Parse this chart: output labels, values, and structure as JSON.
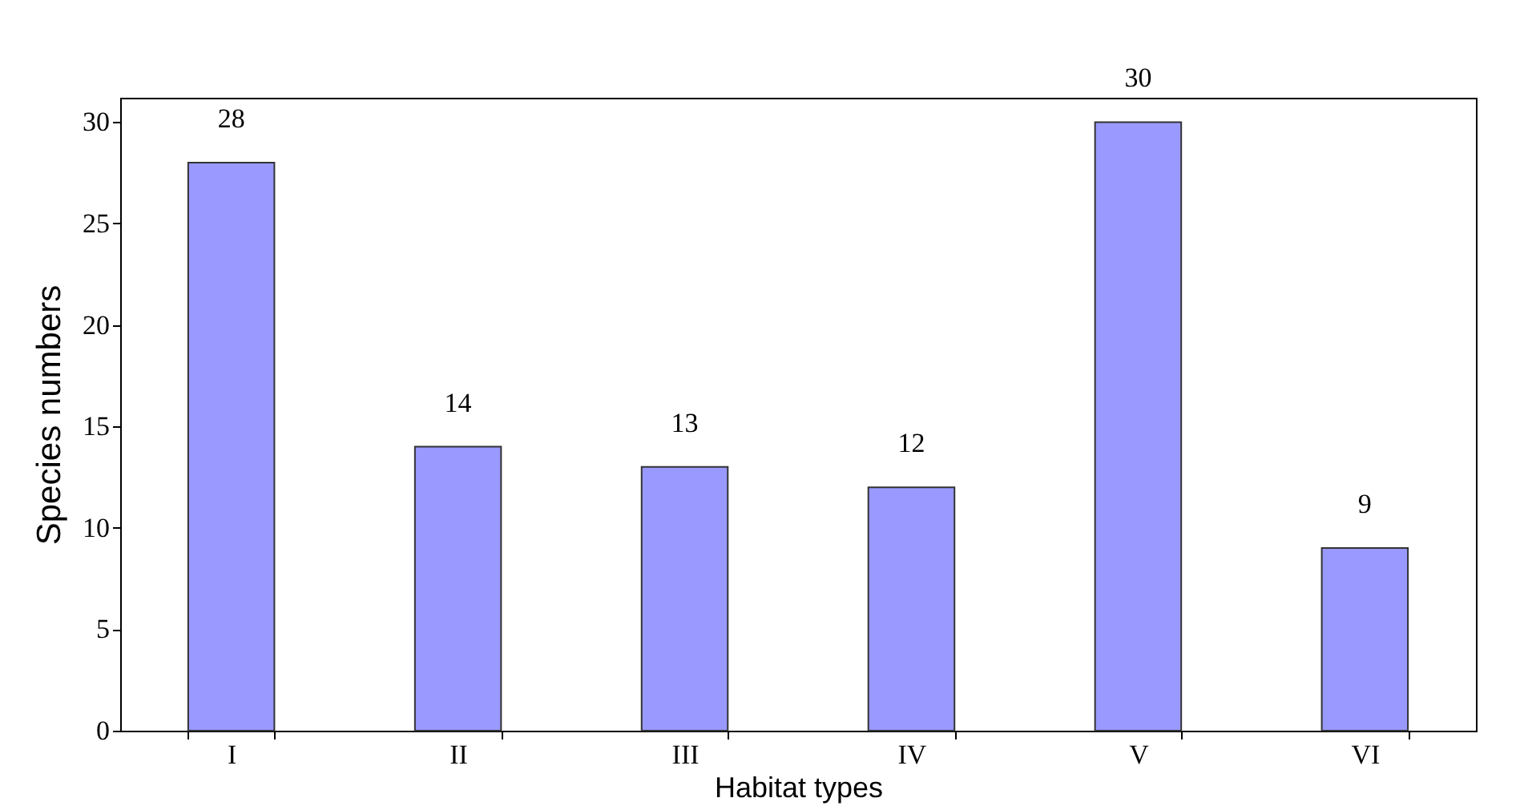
{
  "chart_data": {
    "type": "bar",
    "xlabel": "Habitat types",
    "ylabel": "Species numbers",
    "categories": [
      "I",
      "II",
      "III",
      "IV",
      "V",
      "VI"
    ],
    "values": [
      28,
      14,
      13,
      12,
      30,
      9
    ],
    "color": "#9999ff",
    "ylim": [
      0,
      31.2
    ],
    "yticks": [
      0,
      5,
      10,
      15,
      20,
      25,
      30
    ],
    "data_labels": true
  }
}
